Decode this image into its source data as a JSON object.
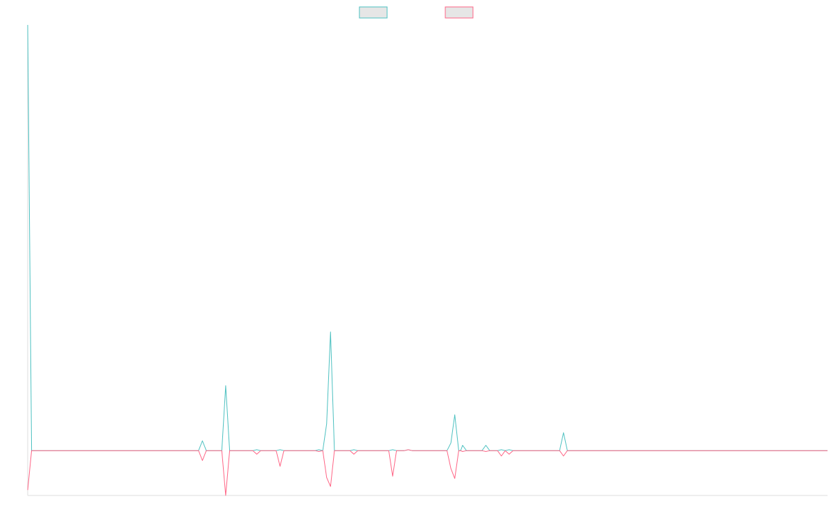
{
  "chart_data": {
    "type": "line",
    "title": "",
    "xlabel": "",
    "ylabel": "",
    "grid": false,
    "legend_position": "top-center",
    "ylim": [
      -10,
      95
    ],
    "series": [
      {
        "color": "#4bc0c0",
        "legend_fill": "#e6e6e6",
        "points": [
          [
            0,
            95
          ],
          [
            1,
            0
          ],
          [
            44,
            0
          ],
          [
            45,
            2.2
          ],
          [
            46,
            0
          ],
          [
            50,
            0
          ],
          [
            51,
            14.5
          ],
          [
            52,
            0
          ],
          [
            58,
            0
          ],
          [
            59,
            0.2
          ],
          [
            60,
            0
          ],
          [
            64,
            0
          ],
          [
            65,
            0.2
          ],
          [
            66,
            0
          ],
          [
            74,
            0
          ],
          [
            75,
            0.2
          ],
          [
            76,
            0
          ],
          [
            77,
            6
          ],
          [
            78,
            26.5
          ],
          [
            79,
            0
          ],
          [
            83,
            0
          ],
          [
            84,
            0.2
          ],
          [
            85,
            0
          ],
          [
            93,
            0
          ],
          [
            94,
            0.2
          ],
          [
            95,
            0
          ],
          [
            97,
            0
          ],
          [
            98,
            0.2
          ],
          [
            99,
            0
          ],
          [
            108,
            0
          ],
          [
            109,
            1.7
          ],
          [
            110,
            8
          ],
          [
            111,
            0
          ],
          [
            111.5,
            0
          ],
          [
            112,
            1.2
          ],
          [
            113,
            0
          ],
          [
            117,
            0
          ],
          [
            118,
            1.2
          ],
          [
            119,
            0
          ],
          [
            121,
            0
          ],
          [
            122,
            0.2
          ],
          [
            123,
            0
          ],
          [
            123,
            0
          ],
          [
            124,
            0.2
          ],
          [
            125,
            0
          ],
          [
            137,
            0
          ],
          [
            138,
            4
          ],
          [
            139,
            0
          ],
          [
            206,
            0
          ]
        ]
      },
      {
        "color": "#ff6384",
        "legend_fill": "#e6e6e6",
        "points": [
          [
            0,
            -8.8
          ],
          [
            1,
            0
          ],
          [
            44,
            0
          ],
          [
            45,
            -2.2
          ],
          [
            46,
            0
          ],
          [
            50,
            0
          ],
          [
            51,
            -10
          ],
          [
            52,
            0
          ],
          [
            58,
            0
          ],
          [
            59,
            -0.8
          ],
          [
            60,
            0
          ],
          [
            64,
            0
          ],
          [
            65,
            -3.5
          ],
          [
            66,
            0
          ],
          [
            74,
            0
          ],
          [
            75,
            -0.2
          ],
          [
            76,
            0
          ],
          [
            77,
            -6
          ],
          [
            78,
            -8
          ],
          [
            79,
            0
          ],
          [
            83,
            0
          ],
          [
            84,
            -0.8
          ],
          [
            85,
            0
          ],
          [
            93,
            0
          ],
          [
            94,
            -5.7
          ],
          [
            95,
            0
          ],
          [
            97,
            0
          ],
          [
            98,
            0.2
          ],
          [
            99,
            0
          ],
          [
            108,
            0
          ],
          [
            109,
            -4
          ],
          [
            110,
            -6.2
          ],
          [
            111,
            0
          ],
          [
            111.5,
            0
          ],
          [
            112,
            -0.2
          ],
          [
            113,
            0
          ],
          [
            117,
            0
          ],
          [
            118,
            -0.2
          ],
          [
            119,
            0
          ],
          [
            121,
            0
          ],
          [
            122,
            -1.2
          ],
          [
            123,
            0
          ],
          [
            123,
            0
          ],
          [
            124,
            -0.8
          ],
          [
            125,
            0
          ],
          [
            137,
            0
          ],
          [
            138,
            -1.2
          ],
          [
            139,
            0
          ],
          [
            206,
            0
          ]
        ]
      }
    ],
    "xlim": [
      0,
      206
    ]
  }
}
